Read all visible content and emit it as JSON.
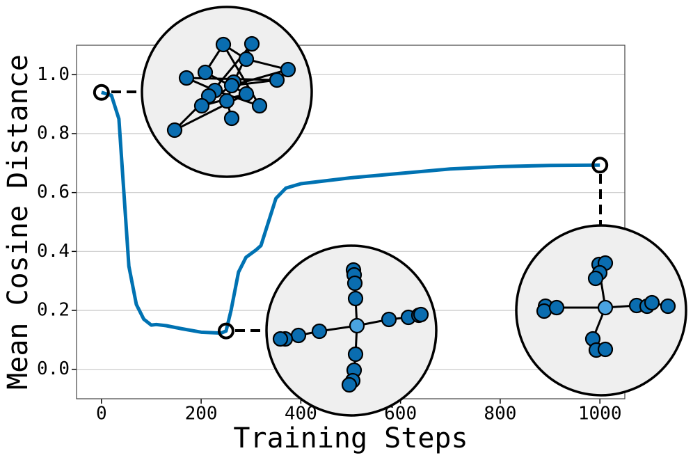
{
  "chart_data": {
    "type": "line",
    "xlabel": "Training Steps",
    "ylabel": "Mean Cosine Distance",
    "x": [
      0,
      20,
      35,
      45,
      55,
      70,
      85,
      100,
      110,
      130,
      160,
      200,
      240,
      250,
      260,
      275,
      290,
      310,
      320,
      335,
      350,
      370,
      400,
      500,
      600,
      700,
      800,
      900,
      1000
    ],
    "series": [
      {
        "color": "#0072b2",
        "values": [
          0.94,
          0.93,
          0.85,
          0.6,
          0.35,
          0.22,
          0.17,
          0.15,
          0.152,
          0.148,
          0.138,
          0.126,
          0.123,
          0.13,
          0.2,
          0.33,
          0.38,
          0.405,
          0.42,
          0.5,
          0.58,
          0.615,
          0.63,
          0.65,
          0.665,
          0.68,
          0.688,
          0.692,
          0.693
        ]
      }
    ],
    "highlights": {
      "x": [
        0,
        250,
        1000
      ],
      "y": [
        0.94,
        0.13,
        0.693
      ]
    },
    "xlim": [
      -50,
      1050
    ],
    "ylim": [
      -0.1,
      1.1
    ],
    "xticks": [
      0,
      200,
      400,
      600,
      800,
      1000
    ],
    "yticks": [
      {
        "value": 0,
        "label": "0.0"
      },
      0.2,
      0.4,
      0.6,
      0.8,
      {
        "value": 1,
        "label": "1.0"
      }
    ],
    "grid": true
  }
}
